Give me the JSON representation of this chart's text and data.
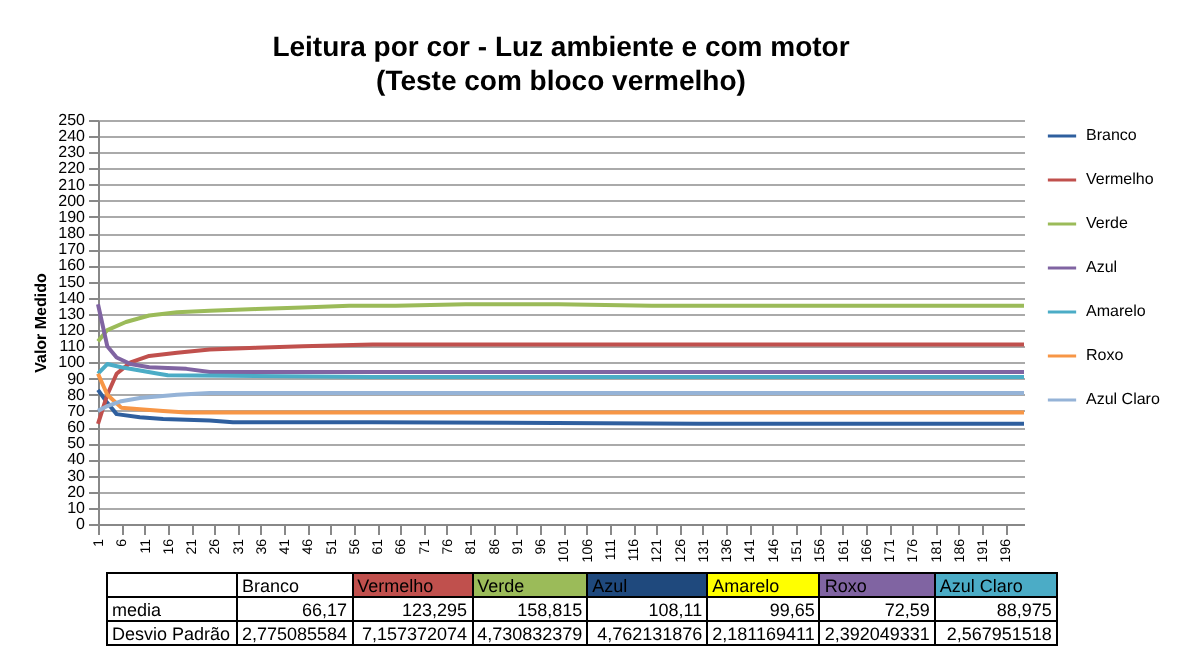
{
  "chart_data": {
    "type": "line",
    "title": "Leitura por cor - Luz ambiente e  com motor",
    "subtitle": "(Teste com bloco vermelho)",
    "ylabel": "Valor Medido",
    "xlim": [
      1,
      200
    ],
    "xticks": [
      1,
      6,
      11,
      16,
      21,
      26,
      31,
      36,
      41,
      46,
      51,
      56,
      61,
      66,
      71,
      76,
      81,
      86,
      91,
      96,
      101,
      106,
      111,
      116,
      121,
      126,
      131,
      136,
      141,
      146,
      151,
      156,
      161,
      166,
      171,
      176,
      181,
      186,
      191,
      196
    ],
    "ylim": [
      0,
      250
    ],
    "yticks": [
      0,
      10,
      20,
      30,
      40,
      50,
      60,
      70,
      80,
      90,
      100,
      110,
      120,
      130,
      140,
      150,
      160,
      170,
      180,
      190,
      200,
      210,
      220,
      230,
      240,
      250
    ],
    "grid": "y",
    "legend": "right",
    "series": [
      {
        "name": "Branco",
        "color": "#2f5f9e",
        "x": [
          1,
          3,
          5,
          10,
          15,
          25,
          30,
          60,
          130,
          200
        ],
        "values": [
          83,
          75,
          68,
          66,
          65,
          64,
          63,
          63,
          62,
          62
        ]
      },
      {
        "name": "Vermelho",
        "color": "#c0504d",
        "x": [
          1,
          3,
          5,
          8,
          12,
          18,
          25,
          35,
          45,
          60,
          200
        ],
        "values": [
          62,
          80,
          93,
          100,
          104,
          106,
          108,
          109,
          110,
          111,
          111
        ]
      },
      {
        "name": "Verde",
        "color": "#9bbb59",
        "x": [
          1,
          3,
          7,
          12,
          18,
          25,
          35,
          45,
          55,
          65,
          80,
          100,
          120,
          150,
          200
        ],
        "values": [
          113,
          120,
          125,
          129,
          131,
          132,
          133,
          134,
          135,
          135,
          136,
          136,
          135,
          135,
          135
        ]
      },
      {
        "name": "Azul",
        "color": "#8064a2",
        "x": [
          1,
          3,
          5,
          8,
          12,
          20,
          25,
          200
        ],
        "values": [
          136,
          110,
          103,
          99,
          97,
          96,
          94,
          94
        ]
      },
      {
        "name": "Amarelo",
        "color": "#4bacc6",
        "x": [
          1,
          3,
          6,
          10,
          14,
          16,
          60,
          200
        ],
        "values": [
          93,
          99,
          97,
          95,
          93,
          92,
          91,
          91
        ]
      },
      {
        "name": "Roxo",
        "color": "#f79646",
        "x": [
          1,
          3,
          6,
          10,
          15,
          20,
          200
        ],
        "values": [
          93,
          80,
          72,
          71,
          70,
          69,
          69
        ]
      },
      {
        "name": "Azul Claro",
        "color": "#95b3d7",
        "x": [
          1,
          3,
          6,
          10,
          18,
          25,
          200
        ],
        "values": [
          70,
          73,
          76,
          78,
          80,
          81,
          81
        ]
      }
    ],
    "annotations": [
      "Branco",
      "Vermelho",
      "Verde",
      "Azul",
      "Amarelo",
      "Roxo",
      "Azul Claro",
      "media",
      "66,17",
      "123,295",
      "158,815",
      "108,11",
      "99,65",
      "72,59",
      "88,975",
      "Desvio Padrão",
      "2,775085584",
      "7,157372074",
      "4,730832379",
      "4,762131876",
      "2,181169411",
      "2,392049331",
      "2,567951518"
    ]
  }
}
